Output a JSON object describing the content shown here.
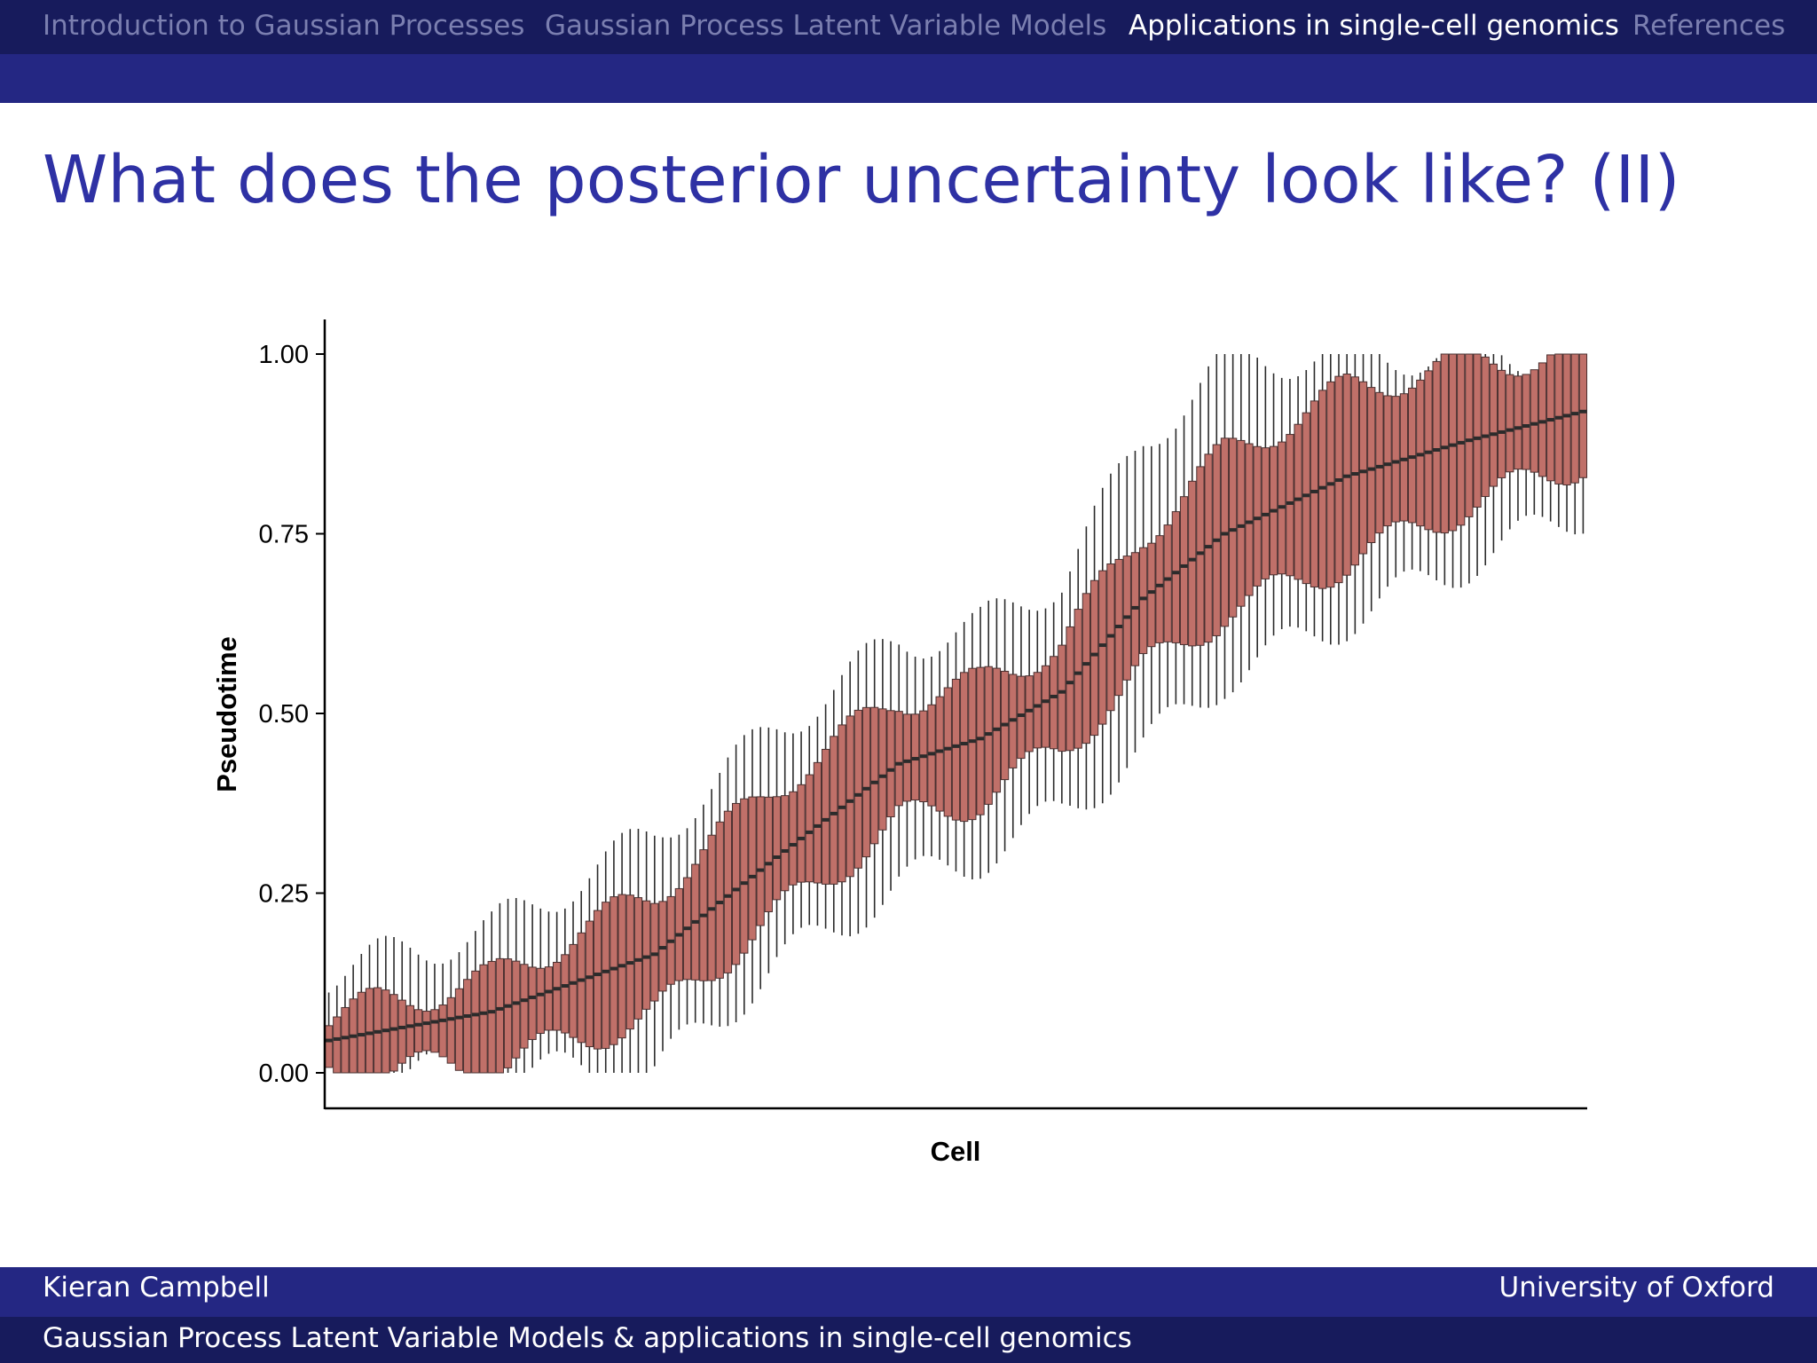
{
  "nav": {
    "items": [
      {
        "label": "Introduction to Gaussian Processes",
        "active": false
      },
      {
        "label": "Gaussian Process Latent Variable Models",
        "active": false
      },
      {
        "label": "Applications in single-cell genomics",
        "active": true
      },
      {
        "label": "References",
        "active": false
      }
    ]
  },
  "slide": {
    "title": "What does the posterior uncertainty look like? (II)"
  },
  "footer": {
    "author": "Kieran Campbell",
    "institution": "University of Oxford",
    "talk_title": "Gaussian Process Latent Variable Models & applications in single-cell genomics"
  },
  "colors": {
    "box_fill": "#c07069",
    "box_stroke": "#4a3030",
    "median": "#2b2b2b",
    "nav_dark": "#171b5c",
    "nav_band": "#242783",
    "title": "#2e31a4"
  },
  "chart_data": {
    "type": "boxplot",
    "xlabel": "Cell",
    "ylabel": "Pseudotime",
    "ylim": [
      -0.05,
      1.05
    ],
    "yticks": [
      0,
      0.25,
      0.5,
      0.75,
      1
    ],
    "ytick_labels": [
      "0.00",
      "0.25",
      "0.50",
      "0.75",
      "1.00"
    ],
    "x_ticks_shown": false,
    "grid": false,
    "n_cells": 155,
    "description_of_series": "each cell's posterior pseudotime shown as a box (interquartile range) with median line and whiskers; medians increase monotonically across ordered cells",
    "anchors": [
      {
        "cell": 0,
        "median": 0.045,
        "q1": 0.0,
        "q3": 0.08,
        "whisker_low": 0.0,
        "whisker_high": 0.14
      },
      {
        "cell": 20,
        "median": 0.085,
        "q1": 0.01,
        "q3": 0.13,
        "whisker_low": 0.0,
        "whisker_high": 0.2
      },
      {
        "cell": 40,
        "median": 0.165,
        "q1": 0.08,
        "q3": 0.25,
        "whisker_low": 0.0,
        "whisker_high": 0.33
      },
      {
        "cell": 55,
        "median": 0.3,
        "q1": 0.22,
        "q3": 0.4,
        "whisker_low": 0.15,
        "whisker_high": 0.48
      },
      {
        "cell": 70,
        "median": 0.43,
        "q1": 0.35,
        "q3": 0.52,
        "whisker_low": 0.26,
        "whisker_high": 0.6
      },
      {
        "cell": 80,
        "median": 0.465,
        "q1": 0.38,
        "q3": 0.54,
        "whisker_low": 0.3,
        "whisker_high": 0.62
      },
      {
        "cell": 90,
        "median": 0.53,
        "q1": 0.45,
        "q3": 0.6,
        "whisker_low": 0.36,
        "whisker_high": 0.69
      },
      {
        "cell": 100,
        "median": 0.66,
        "q1": 0.56,
        "q3": 0.75,
        "whisker_low": 0.45,
        "whisker_high": 0.88
      },
      {
        "cell": 110,
        "median": 0.75,
        "q1": 0.64,
        "q3": 0.86,
        "whisker_low": 0.55,
        "whisker_high": 0.99
      },
      {
        "cell": 125,
        "median": 0.83,
        "q1": 0.71,
        "q3": 0.95,
        "whisker_low": 0.63,
        "whisker_high": 1.0
      },
      {
        "cell": 140,
        "median": 0.88,
        "q1": 0.79,
        "q3": 0.99,
        "whisker_low": 0.71,
        "whisker_high": 1.0
      },
      {
        "cell": 154,
        "median": 0.92,
        "q1": 0.85,
        "q3": 1.0,
        "whisker_low": 0.78,
        "whisker_high": 1.0
      }
    ]
  }
}
